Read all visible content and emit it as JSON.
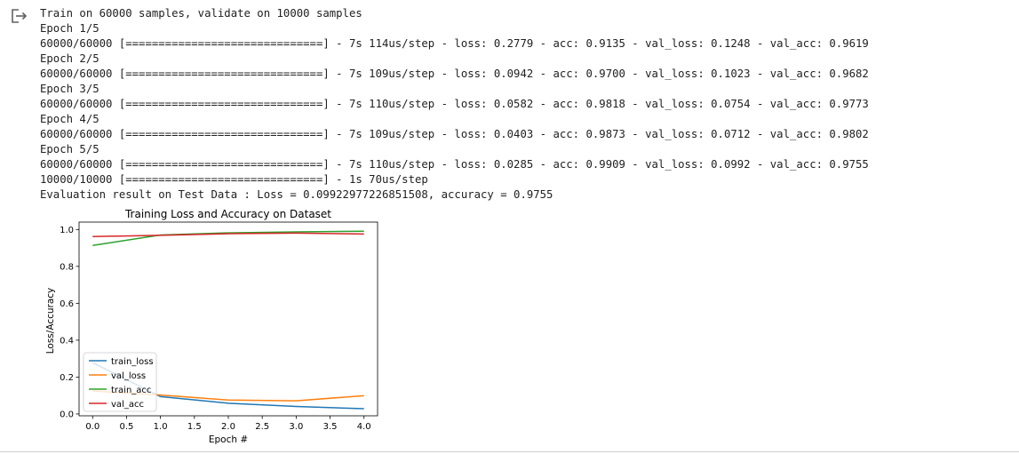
{
  "output_icon": "output-arrow-icon",
  "console_lines": [
    "Train on 60000 samples, validate on 10000 samples",
    "Epoch 1/5",
    "60000/60000 [==============================] - 7s 114us/step - loss: 0.2779 - acc: 0.9135 - val_loss: 0.1248 - val_acc: 0.9619",
    "Epoch 2/5",
    "60000/60000 [==============================] - 7s 109us/step - loss: 0.0942 - acc: 0.9700 - val_loss: 0.1023 - val_acc: 0.9682",
    "Epoch 3/5",
    "60000/60000 [==============================] - 7s 110us/step - loss: 0.0582 - acc: 0.9818 - val_loss: 0.0754 - val_acc: 0.9773",
    "Epoch 4/5",
    "60000/60000 [==============================] - 7s 109us/step - loss: 0.0403 - acc: 0.9873 - val_loss: 0.0712 - val_acc: 0.9802",
    "Epoch 5/5",
    "60000/60000 [==============================] - 7s 110us/step - loss: 0.0285 - acc: 0.9909 - val_loss: 0.0992 - val_acc: 0.9755",
    "10000/10000 [==============================] - 1s 70us/step",
    "Evaluation result on Test Data : Loss = 0.09922977226851508, accuracy = 0.9755"
  ],
  "chart_data": {
    "type": "line",
    "title": "Training Loss and Accuracy on Dataset",
    "xlabel": "Epoch #",
    "ylabel": "Loss/Accuracy",
    "x": [
      0,
      1,
      2,
      3,
      4
    ],
    "xlim": [
      -0.2,
      4.2
    ],
    "ylim": [
      -0.01,
      1.04
    ],
    "xticks": [
      0.0,
      0.5,
      1.0,
      1.5,
      2.0,
      2.5,
      3.0,
      3.5,
      4.0
    ],
    "xtick_labels": [
      "0.0",
      "0.5",
      "1.0",
      "1.5",
      "2.0",
      "2.5",
      "3.0",
      "3.5",
      "4.0"
    ],
    "yticks": [
      0.0,
      0.2,
      0.4,
      0.6,
      0.8,
      1.0
    ],
    "ytick_labels": [
      "0.0",
      "0.2",
      "0.4",
      "0.6",
      "0.8",
      "1.0"
    ],
    "grid": false,
    "legend_position": "lower-left",
    "series": [
      {
        "name": "train_loss",
        "color": "#1f77b4",
        "values": [
          0.2779,
          0.0942,
          0.0582,
          0.0403,
          0.0285
        ]
      },
      {
        "name": "val_loss",
        "color": "#ff7f0e",
        "values": [
          0.1248,
          0.1023,
          0.0754,
          0.0712,
          0.0992
        ]
      },
      {
        "name": "train_acc",
        "color": "#2ca02c",
        "values": [
          0.9135,
          0.97,
          0.9818,
          0.9873,
          0.9909
        ]
      },
      {
        "name": "val_acc",
        "color": "#d62728",
        "values": [
          0.9619,
          0.9682,
          0.9773,
          0.9802,
          0.9755
        ]
      }
    ]
  }
}
